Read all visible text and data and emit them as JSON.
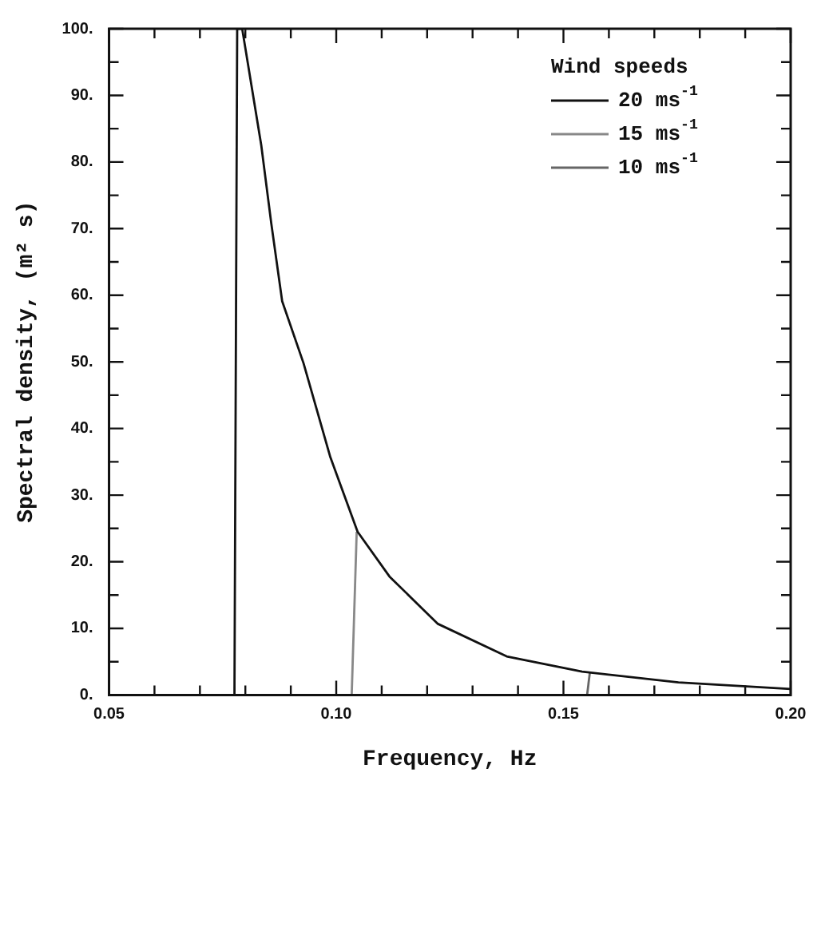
{
  "chart_data": {
    "type": "line",
    "xlabel": "Frequency, Hz",
    "ylabel": "Spectral density, (m² s)",
    "legend_title": "Wind speeds",
    "legend": "top right",
    "grid": false,
    "marker": "none",
    "line_style": "solid",
    "xlim": [
      0.05,
      0.2
    ],
    "ylim": [
      0,
      100
    ],
    "xticks": [
      0.05,
      {
        "value": 0.06,
        "label": null
      },
      {
        "value": 0.07,
        "label": null
      },
      {
        "value": 0.08,
        "label": null
      },
      {
        "value": 0.09,
        "label": null
      },
      {
        "value": 0.1,
        "label": "0.10"
      },
      {
        "value": 0.11,
        "label": null
      },
      {
        "value": 0.12,
        "label": null
      },
      {
        "value": 0.13,
        "label": null
      },
      {
        "value": 0.14,
        "label": null
      },
      0.15,
      {
        "value": 0.16,
        "label": null
      },
      {
        "value": 0.17,
        "label": null
      },
      {
        "value": 0.18,
        "label": null
      },
      {
        "value": 0.19,
        "label": null
      },
      {
        "value": 0.2,
        "label": "0.20"
      }
    ],
    "yticks": [
      {
        "value": 0,
        "label": "0."
      },
      {
        "value": 5,
        "label": null
      },
      {
        "value": 10,
        "label": "10."
      },
      {
        "value": 15,
        "label": null
      },
      {
        "value": 20,
        "label": "20."
      },
      {
        "value": 25,
        "label": null
      },
      {
        "value": 30,
        "label": "30."
      },
      {
        "value": 35,
        "label": null
      },
      {
        "value": 40,
        "label": "40."
      },
      {
        "value": 45,
        "label": null
      },
      {
        "value": 50,
        "label": "50."
      },
      {
        "value": 55,
        "label": null
      },
      {
        "value": 60,
        "label": "60."
      },
      {
        "value": 65,
        "label": null
      },
      {
        "value": 70,
        "label": "70."
      },
      {
        "value": 75,
        "label": null
      },
      {
        "value": 80,
        "label": "80."
      },
      {
        "value": 85,
        "label": null
      },
      {
        "value": 90,
        "label": "90."
      },
      {
        "value": 95,
        "label": null
      },
      {
        "value": 100,
        "label": "100."
      }
    ],
    "series": [
      {
        "name": "20 ms$^{-1}$",
        "color": "#111111",
        "x": [
          0.0776,
          0.0782,
          0.0793,
          0.0835,
          0.0857,
          0.0881,
          0.0928,
          0.0987,
          0.1047,
          0.1117,
          0.1223,
          0.1375,
          0.1541,
          0.1753,
          0.2
        ],
        "values": [
          0,
          100,
          100,
          82.5,
          70.8,
          59.1,
          49.8,
          35.7,
          24.5,
          17.8,
          10.7,
          5.8,
          3.5,
          1.9,
          0.9
        ]
      },
      {
        "name": "15 ms$^{-1}$",
        "color": "#888888",
        "x": [
          0.1034,
          0.1045
        ],
        "values": [
          0,
          24.5
        ]
      },
      {
        "name": "10 ms$^{-1}$",
        "color": "#666666",
        "x": [
          0.1552,
          0.1558
        ],
        "values": [
          0,
          3.3
        ]
      }
    ]
  }
}
